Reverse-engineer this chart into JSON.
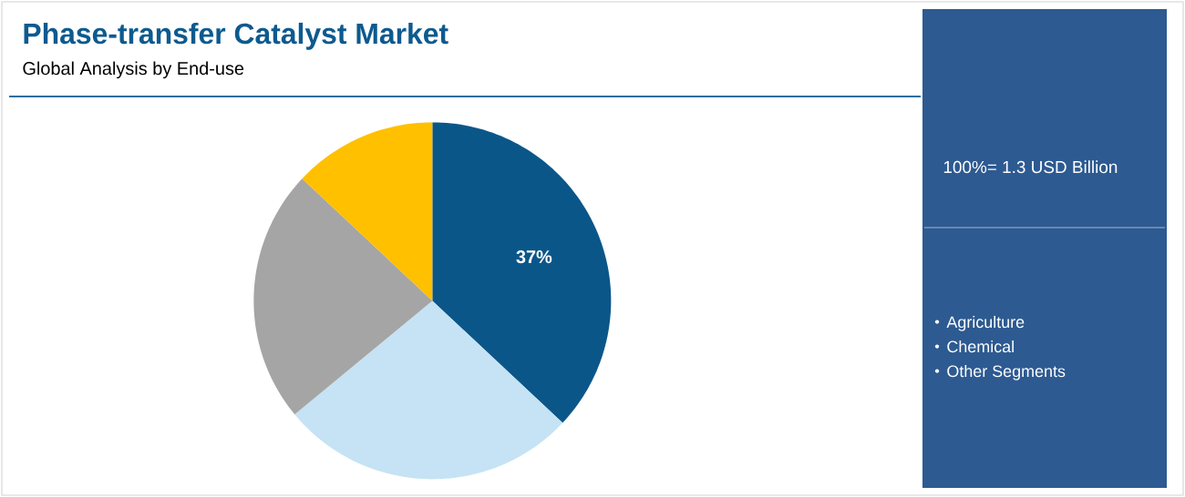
{
  "chart_data": {
    "type": "pie",
    "title": "Phase-transfer Catalyst Market",
    "subtitle": "Global Analysis by End-use",
    "categories": [
      null,
      null,
      null,
      null
    ],
    "values": [
      37,
      27,
      23,
      13
    ],
    "colors": [
      "#0b5689",
      "#c5e3f4",
      "#a5a5a5",
      "#ffc000"
    ],
    "value_labels": [
      "37%",
      null,
      null,
      null
    ],
    "annotations": [
      "100%= 1.3 USD Billion",
      "Agriculture",
      "Chemical",
      "Other Segments"
    ]
  }
}
